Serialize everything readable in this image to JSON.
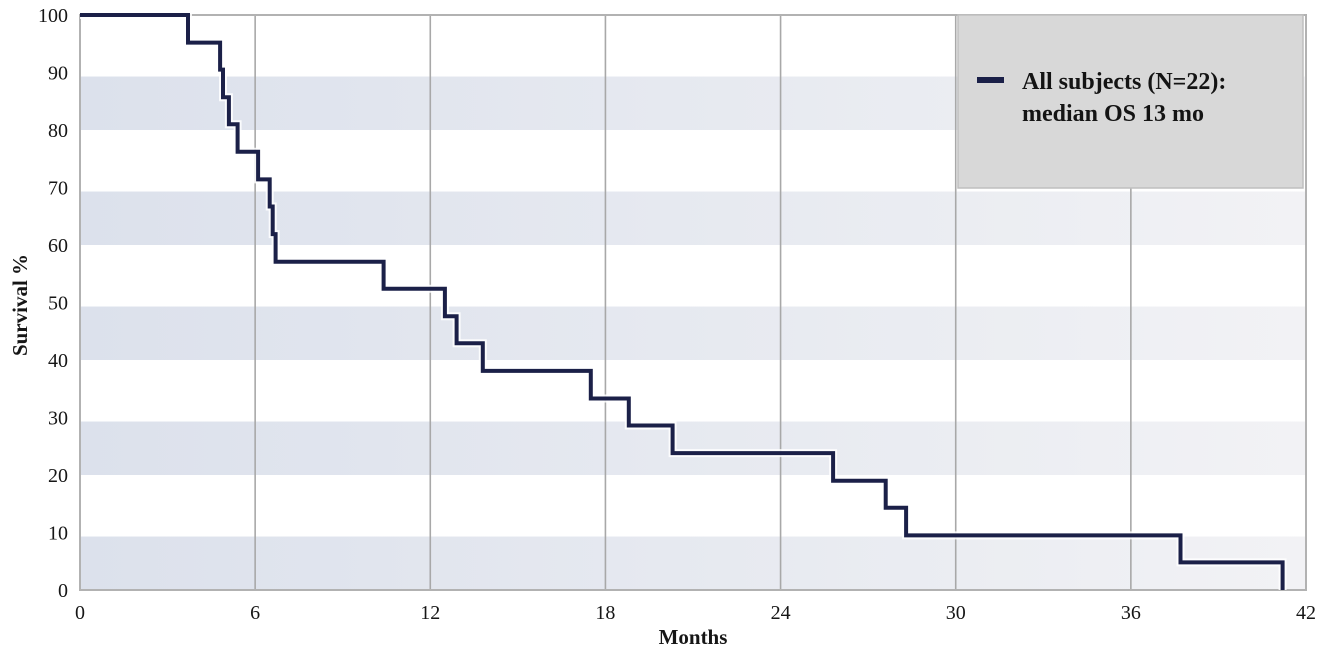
{
  "figure": {
    "xlabel": "Months",
    "ylabel": "Survival %",
    "legend": {
      "line1": "All subjects (N=22):",
      "line2": "median OS 13 mo",
      "marker": "navy-dash-icon"
    }
  },
  "chart_data": {
    "type": "line",
    "subtype": "kaplan-meier-step",
    "title": "",
    "xlabel": "Months",
    "ylabel": "Survival %",
    "xlim": [
      0,
      42
    ],
    "ylim": [
      0,
      100
    ],
    "x_ticks": [
      0,
      6,
      12,
      18,
      24,
      30,
      36,
      42
    ],
    "y_ticks": [
      0,
      10,
      20,
      30,
      40,
      50,
      60,
      70,
      80,
      90,
      100
    ],
    "grid": "vertical-only",
    "legend_position": "top-right",
    "series": [
      {
        "name": "All subjects (N=22): median OS 13 mo",
        "step": "post",
        "color": "#1b2048",
        "points": [
          [
            0,
            100
          ],
          [
            3.7,
            95.2
          ],
          [
            4.8,
            90.5
          ],
          [
            4.9,
            85.7
          ],
          [
            5.1,
            81.0
          ],
          [
            5.4,
            76.2
          ],
          [
            6.1,
            71.4
          ],
          [
            6.5,
            66.7
          ],
          [
            6.6,
            61.9
          ],
          [
            6.7,
            57.1
          ],
          [
            10.4,
            52.4
          ],
          [
            12.5,
            47.6
          ],
          [
            12.9,
            42.9
          ],
          [
            13.8,
            38.1
          ],
          [
            17.5,
            33.3
          ],
          [
            18.8,
            28.6
          ],
          [
            20.3,
            23.8
          ],
          [
            25.8,
            19.0
          ],
          [
            27.6,
            14.3
          ],
          [
            28.3,
            9.5
          ],
          [
            37.7,
            4.8
          ],
          [
            41.2,
            0
          ]
        ]
      }
    ],
    "bands": {
      "ranges": [
        [
          0,
          10
        ],
        [
          20,
          30
        ],
        [
          40,
          50
        ],
        [
          60,
          70
        ],
        [
          80,
          90
        ]
      ],
      "color_left": "#dce1ec",
      "color_right": "#f2f2f5"
    }
  },
  "colors": {
    "curve": "#1b2048",
    "curve_halo": "#ffffff",
    "gridline": "#a8a8a8",
    "frame": "#b2b2b2",
    "legend_bg": "#d8d8d8",
    "legend_border": "#bfbfbf",
    "text": "#161616"
  }
}
